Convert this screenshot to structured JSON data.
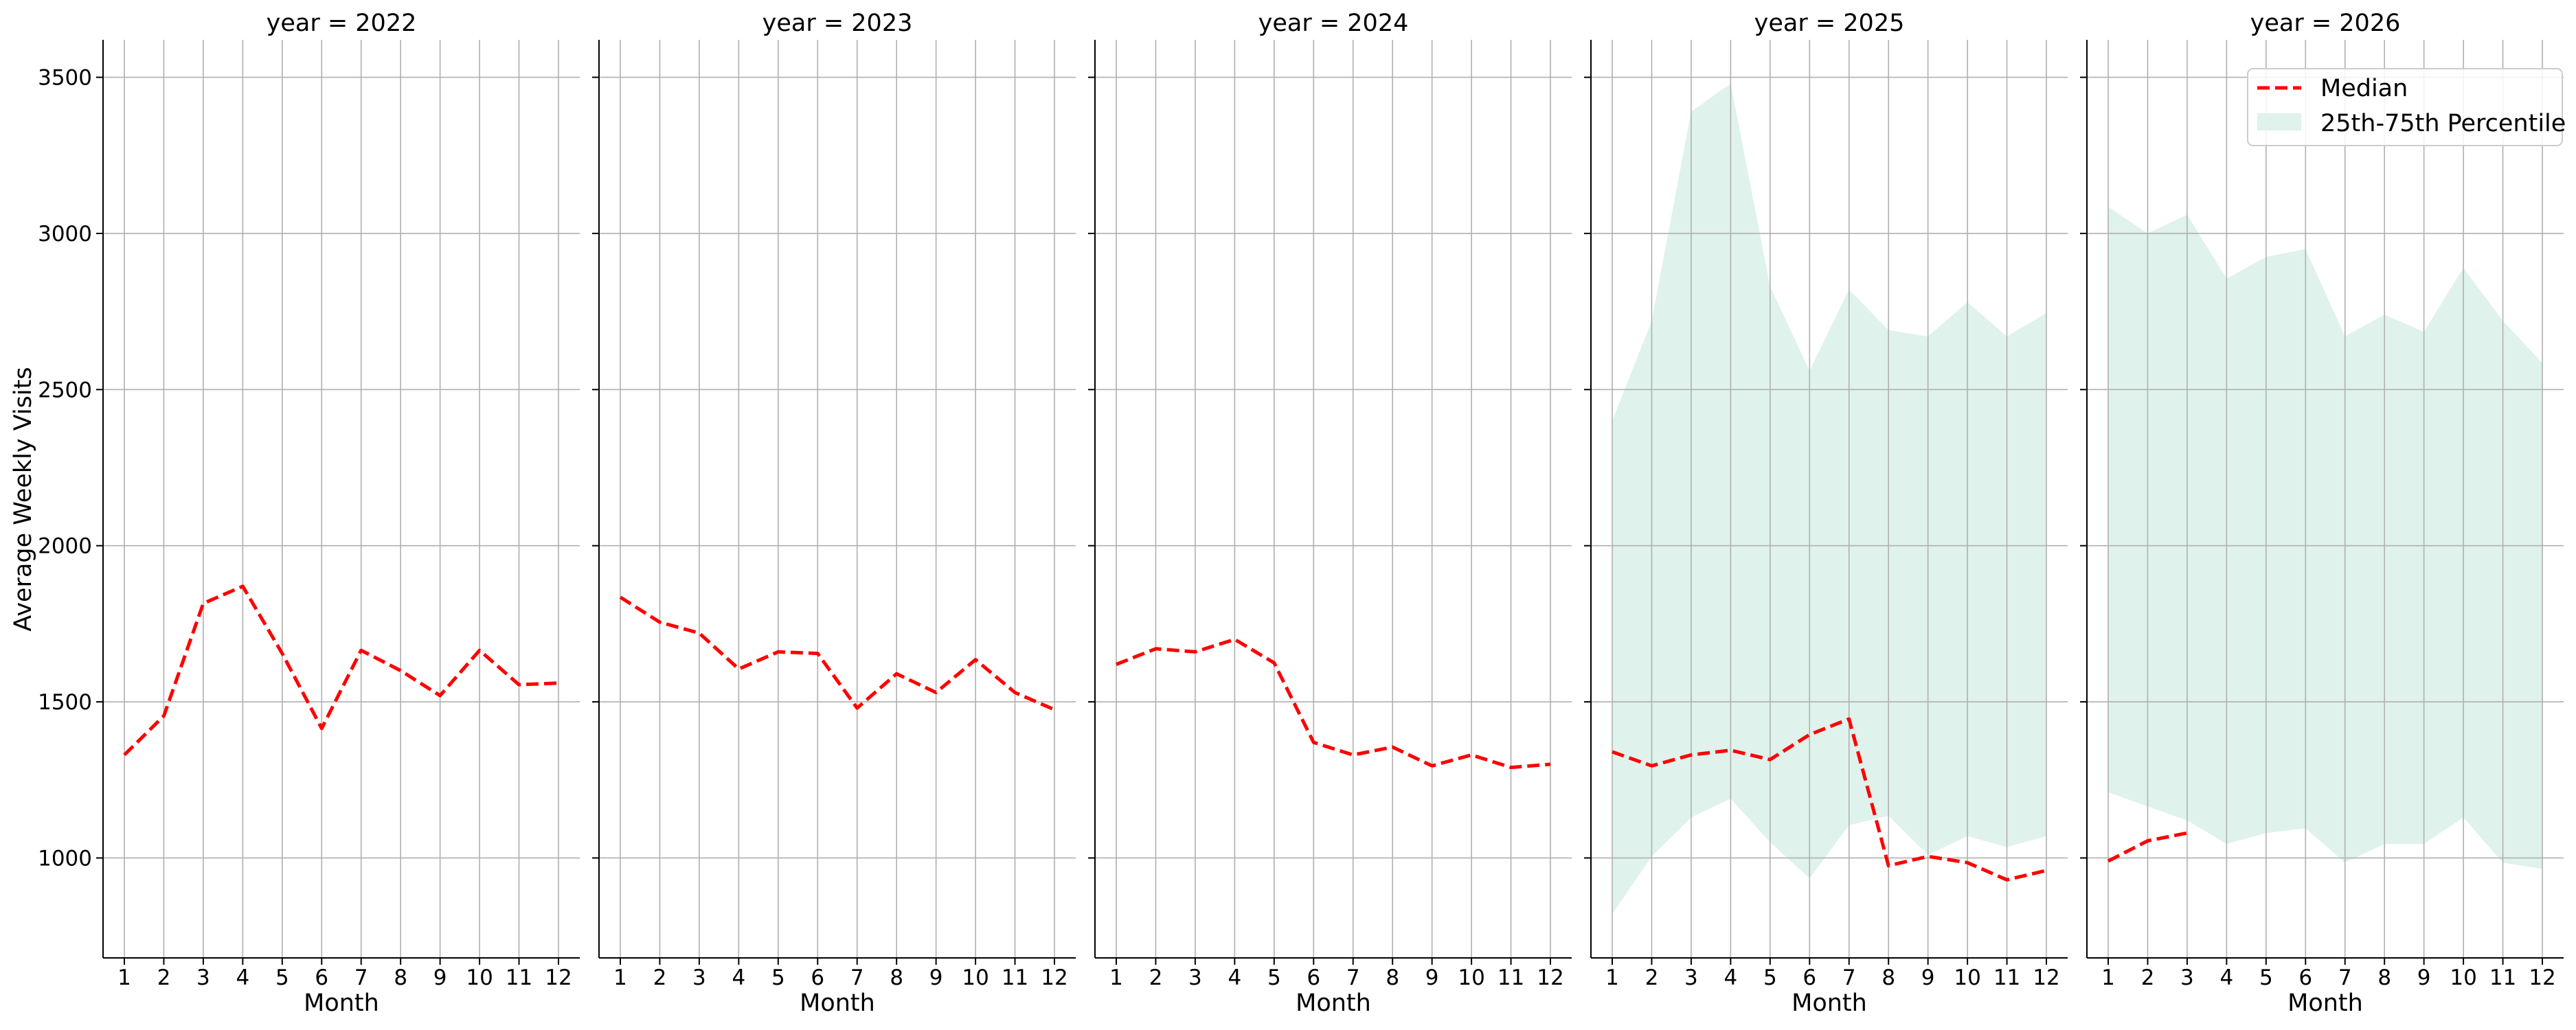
{
  "chart_data": {
    "type": "line",
    "ylabel": "Average Weekly Visits",
    "ylim": [
      680,
      3620
    ],
    "yticks": [
      1000,
      1500,
      2000,
      2500,
      3000,
      3500
    ],
    "xlabel": "Month",
    "xticks": [
      1,
      2,
      3,
      4,
      5,
      6,
      7,
      8,
      9,
      10,
      11,
      12
    ],
    "grid": true,
    "legend_location": "top-right",
    "legend": {
      "median": "Median",
      "band": "25th-75th Percentile"
    },
    "colors": {
      "median": "#ff0000",
      "band": "#dff2ec",
      "grid": "#b0b0b0",
      "axis": "#000000"
    },
    "panels": [
      {
        "title": "year = 2022",
        "median": {
          "x": [
            1,
            2,
            3,
            4,
            5,
            6,
            7,
            8,
            9,
            10,
            11,
            12
          ],
          "y": [
            1330,
            1455,
            1815,
            1870,
            1655,
            1415,
            1665,
            1600,
            1520,
            1665,
            1555,
            1560
          ]
        },
        "band": null
      },
      {
        "title": "year = 2023",
        "median": {
          "x": [
            1,
            2,
            3,
            4,
            5,
            6,
            7,
            8,
            9,
            10,
            11,
            12
          ],
          "y": [
            1835,
            1755,
            1720,
            1605,
            1660,
            1655,
            1480,
            1590,
            1530,
            1635,
            1530,
            1475
          ]
        },
        "band": null
      },
      {
        "title": "year = 2024",
        "median": {
          "x": [
            1,
            2,
            3,
            4,
            5,
            6,
            7,
            8,
            9,
            10,
            11,
            12
          ],
          "y": [
            1620,
            1670,
            1660,
            1700,
            1625,
            1370,
            1330,
            1355,
            1295,
            1330,
            1290,
            1300
          ]
        },
        "band": null
      },
      {
        "title": "year = 2025",
        "median": {
          "x": [
            1,
            2,
            3,
            4,
            5,
            6,
            7,
            8,
            9,
            10,
            11,
            12
          ],
          "y": [
            1340,
            1295,
            1330,
            1345,
            1315,
            1395,
            1445,
            975,
            1005,
            985,
            930,
            960
          ]
        },
        "band": {
          "x": [
            1,
            2,
            3,
            4,
            5,
            6,
            7,
            8,
            9,
            10,
            11,
            12
          ],
          "low": [
            820,
            1005,
            1130,
            1190,
            1050,
            935,
            1105,
            1135,
            1010,
            1070,
            1035,
            1070
          ],
          "high": [
            2400,
            2720,
            3390,
            3480,
            2830,
            2560,
            2820,
            2690,
            2670,
            2780,
            2670,
            2745
          ]
        }
      },
      {
        "title": "year = 2026",
        "median": {
          "x": [
            1,
            2,
            3
          ],
          "y": [
            990,
            1055,
            1080
          ]
        },
        "band": {
          "x": [
            1,
            2,
            3,
            4,
            5,
            6,
            7,
            8,
            9,
            10,
            11,
            12
          ],
          "low": [
            1210,
            1165,
            1120,
            1045,
            1080,
            1095,
            985,
            1045,
            1045,
            1130,
            985,
            965
          ],
          "high": [
            3085,
            3000,
            3060,
            2855,
            2925,
            2950,
            2670,
            2740,
            2685,
            2890,
            2720,
            2585
          ]
        }
      }
    ]
  }
}
